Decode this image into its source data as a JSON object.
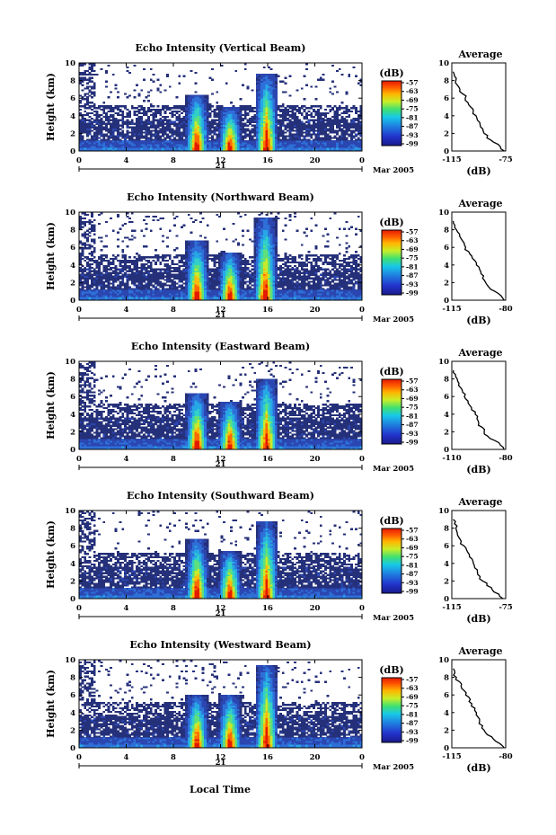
{
  "figure": {
    "x_label": "Local Time",
    "month_label": "Mar 2005",
    "day_label": "21",
    "y_label": "Height (km)",
    "avg_title": "Average",
    "avg_xlabel": "(dB)",
    "cbar_unit": "(dB)"
  },
  "chart_data": [
    {
      "type": "heatmap",
      "title": "Echo Intensity (Vertical Beam)",
      "xlabel": "",
      "ylabel": "Height (km)",
      "x_ticks": [
        "0",
        "4",
        "8",
        "12",
        "16",
        "20",
        "0"
      ],
      "y_ticks": [
        "0",
        "2",
        "4",
        "6",
        "8",
        "10"
      ],
      "xlim": [
        0,
        24
      ],
      "ylim": [
        0,
        10
      ],
      "colorbar": {
        "label": "(dB)",
        "ticks": [
          "-57",
          "-63",
          "-69",
          "-75",
          "-81",
          "-87",
          "-93",
          "-99"
        ]
      },
      "storm_columns_hour": [
        10,
        12.8,
        15.9
      ],
      "storm_top_km": [
        6.5,
        5.0,
        8.8
      ],
      "profile": {
        "title": "Average",
        "xlabel": "(dB)",
        "xlim": [
          -115,
          -75
        ],
        "x_ticks": [
          "-115",
          "-75"
        ],
        "y_ticks": [
          "0",
          "2",
          "4",
          "6",
          "8",
          "10"
        ],
        "height_km": [
          0,
          0.5,
          1,
          1.5,
          2,
          2.5,
          3,
          3.5,
          4,
          4.5,
          5,
          5.5,
          6,
          6.5,
          7,
          7.5,
          8,
          8.5,
          9
        ],
        "db": [
          -76,
          -79,
          -84,
          -89,
          -91,
          -92,
          -94,
          -96,
          -97,
          -99,
          -101,
          -103,
          -105,
          -107,
          -109,
          -111,
          -112,
          -113,
          -114
        ]
      }
    },
    {
      "type": "heatmap",
      "title": "Echo Intensity (Northward Beam)",
      "xlabel": "",
      "ylabel": "Height (km)",
      "x_ticks": [
        "0",
        "4",
        "8",
        "12",
        "16",
        "20",
        "0"
      ],
      "y_ticks": [
        "0",
        "2",
        "4",
        "6",
        "8",
        "10"
      ],
      "xlim": [
        0,
        24
      ],
      "ylim": [
        0,
        10
      ],
      "colorbar": {
        "label": "(dB)",
        "ticks": [
          "-57",
          "-63",
          "-69",
          "-75",
          "-81",
          "-87",
          "-93",
          "-99"
        ]
      },
      "storm_columns_hour": [
        10,
        12.8,
        15.8
      ],
      "storm_top_km": [
        6.8,
        5.5,
        9.5
      ],
      "profile": {
        "title": "Average",
        "xlabel": "(dB)",
        "xlim": [
          -115,
          -80
        ],
        "x_ticks": [
          "-115",
          "-80"
        ],
        "y_ticks": [
          "0",
          "2",
          "4",
          "6",
          "8",
          "10"
        ],
        "height_km": [
          0,
          0.5,
          1,
          1.5,
          2,
          2.5,
          3,
          3.5,
          4,
          4.5,
          5,
          5.5,
          6,
          6.5,
          7,
          7.5,
          8,
          8.5,
          9
        ],
        "db": [
          -81,
          -83,
          -87,
          -91,
          -93,
          -95,
          -96,
          -97,
          -99,
          -100,
          -102,
          -104,
          -106,
          -107,
          -109,
          -110,
          -112,
          -113,
          -114
        ]
      }
    },
    {
      "type": "heatmap",
      "title": "Echo Intensity (Eastward Beam)",
      "xlabel": "",
      "ylabel": "Height (km)",
      "x_ticks": [
        "0",
        "4",
        "8",
        "12",
        "16",
        "20",
        "0"
      ],
      "y_ticks": [
        "0",
        "2",
        "4",
        "6",
        "8",
        "10"
      ],
      "xlim": [
        0,
        24
      ],
      "ylim": [
        0,
        10
      ],
      "colorbar": {
        "label": "(dB)",
        "ticks": [
          "-57",
          "-63",
          "-69",
          "-75",
          "-81",
          "-87",
          "-93",
          "-99"
        ]
      },
      "storm_columns_hour": [
        10,
        12.8,
        15.9
      ],
      "storm_top_km": [
        6.5,
        5.5,
        8.0
      ],
      "profile": {
        "title": "Average",
        "xlabel": "(dB)",
        "xlim": [
          -110,
          -80
        ],
        "x_ticks": [
          "-110",
          "-80"
        ],
        "y_ticks": [
          "0",
          "2",
          "4",
          "6",
          "8",
          "10"
        ],
        "height_km": [
          0,
          0.5,
          1,
          1.5,
          2,
          2.5,
          3,
          3.5,
          4,
          4.5,
          5,
          5.5,
          6,
          6.5,
          7,
          7.5,
          8,
          8.5,
          9
        ],
        "db": [
          -81,
          -83,
          -86,
          -90,
          -92,
          -93,
          -95,
          -96,
          -97,
          -99,
          -100,
          -101,
          -103,
          -104,
          -105,
          -106,
          -107,
          -108,
          -109
        ]
      }
    },
    {
      "type": "heatmap",
      "title": "Echo Intensity (Southward Beam)",
      "xlabel": "",
      "ylabel": "Height (km)",
      "x_ticks": [
        "0",
        "4",
        "8",
        "12",
        "16",
        "20",
        "0"
      ],
      "y_ticks": [
        "0",
        "2",
        "4",
        "6",
        "8",
        "10"
      ],
      "xlim": [
        0,
        24
      ],
      "ylim": [
        0,
        10
      ],
      "colorbar": {
        "label": "(dB)",
        "ticks": [
          "-57",
          "-63",
          "-69",
          "-75",
          "-81",
          "-87",
          "-93",
          "-99"
        ]
      },
      "storm_columns_hour": [
        10,
        12.8,
        15.9
      ],
      "storm_top_km": [
        6.8,
        5.5,
        8.8
      ],
      "profile": {
        "title": "Average",
        "xlabel": "(dB)",
        "xlim": [
          -115,
          -75
        ],
        "x_ticks": [
          "-115",
          "-75"
        ],
        "y_ticks": [
          "0",
          "2",
          "4",
          "6",
          "8",
          "10"
        ],
        "height_km": [
          0,
          0.5,
          1,
          1.5,
          2,
          2.5,
          3,
          3.5,
          4,
          4.5,
          5,
          5.5,
          6,
          6.5,
          7,
          7.5,
          8,
          8.5,
          9
        ],
        "db": [
          -77,
          -80,
          -85,
          -89,
          -92,
          -94,
          -96,
          -98,
          -99,
          -100,
          -102,
          -104,
          -106,
          -108,
          -110,
          -111,
          -112,
          -113,
          -114
        ]
      }
    },
    {
      "type": "heatmap",
      "title": "Echo Intensity (Westward Beam)",
      "xlabel": "Local Time",
      "ylabel": "Height (km)",
      "x_ticks": [
        "0",
        "4",
        "8",
        "12",
        "16",
        "20",
        "0"
      ],
      "y_ticks": [
        "0",
        "2",
        "4",
        "6",
        "8",
        "10"
      ],
      "xlim": [
        0,
        24
      ],
      "ylim": [
        0,
        10
      ],
      "colorbar": {
        "label": "(dB)",
        "ticks": [
          "-57",
          "-63",
          "-69",
          "-75",
          "-81",
          "-87",
          "-93",
          "-99"
        ]
      },
      "storm_columns_hour": [
        10,
        12.8,
        15.9
      ],
      "storm_top_km": [
        6.0,
        6.0,
        9.5
      ],
      "profile": {
        "title": "Average",
        "xlabel": "(dB)",
        "xlim": [
          -115,
          -80
        ],
        "x_ticks": [
          "-115",
          "-80"
        ],
        "y_ticks": [
          "0",
          "2",
          "4",
          "6",
          "8",
          "10"
        ],
        "height_km": [
          0,
          0.5,
          1,
          1.5,
          2,
          2.5,
          3,
          3.5,
          4,
          4.5,
          5,
          5.5,
          6,
          6.5,
          7,
          7.5,
          8,
          8.5,
          9
        ],
        "db": [
          -81,
          -84,
          -88,
          -92,
          -94,
          -95,
          -97,
          -98,
          -99,
          -100,
          -102,
          -103,
          -106,
          -107,
          -109,
          -110,
          -112,
          -113,
          -114
        ]
      }
    }
  ]
}
